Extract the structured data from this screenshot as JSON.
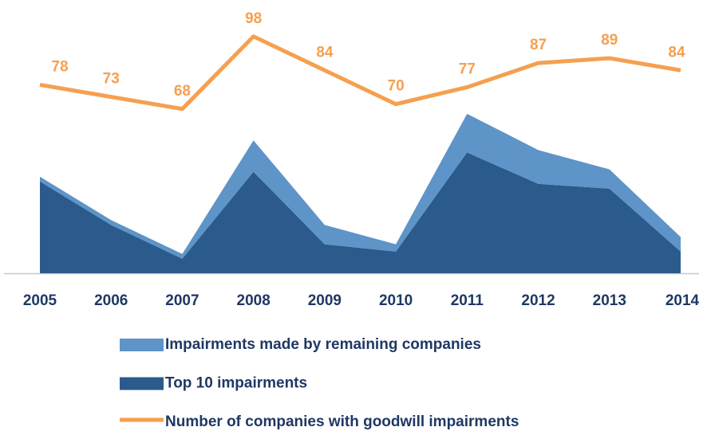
{
  "chart_data": {
    "type": "area",
    "categories": [
      "2005",
      "2006",
      "2007",
      "2008",
      "2009",
      "2010",
      "2011",
      "2012",
      "2013",
      "2014"
    ],
    "ylim": [
      0,
      110
    ],
    "series": [
      {
        "name": "Top 10 impairments",
        "type": "area",
        "color": "#2a5b8c",
        "values": [
          38,
          20,
          6,
          42,
          12,
          9,
          50,
          37,
          35,
          9
        ]
      },
      {
        "name": "Impairments made by remaining companies",
        "type": "area",
        "color": "#5e94c8",
        "values": [
          2,
          2,
          2,
          13,
          8,
          3,
          16,
          14,
          8,
          6
        ]
      },
      {
        "name": "Number of companies with goodwill impairments",
        "type": "line",
        "color": "#f5a050",
        "values": [
          78,
          73,
          68,
          98,
          84,
          70,
          77,
          87,
          89,
          84
        ]
      }
    ]
  }
}
